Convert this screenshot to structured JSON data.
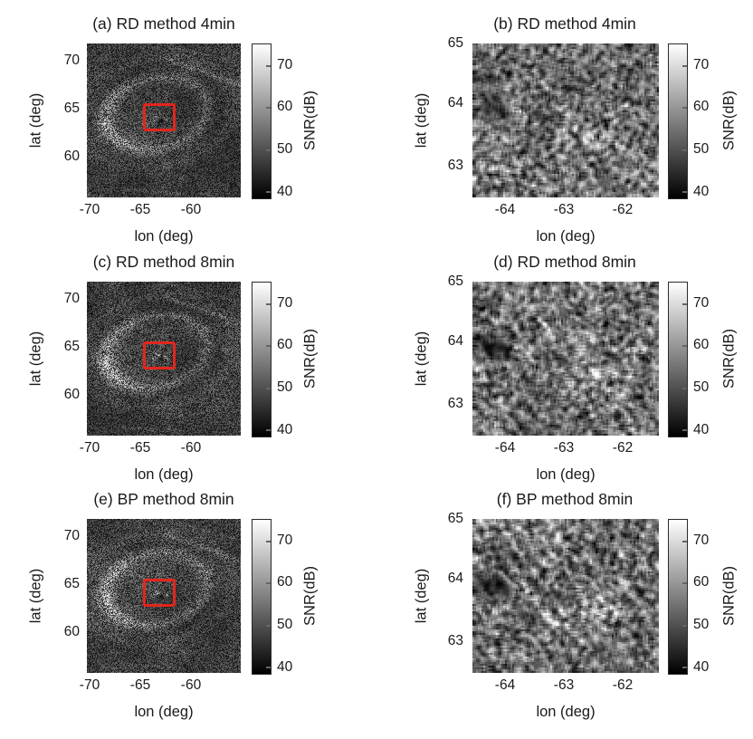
{
  "figure": {
    "type": "matlab-style multi-panel figure",
    "roi_color": "#e3261d",
    "text_color": "#1a1a1a",
    "background": "#ffffff"
  },
  "chart_data": {
    "type": "heatmap",
    "description": "Six grayscale SAR SNR maps: left column full scene with red ROI box, right column zoom of ROI",
    "panels": [
      {
        "id": "a",
        "title": "(a) RD method 4min",
        "method": "RD",
        "duration": "4min",
        "view": "context",
        "xlabel": "lon (deg)",
        "ylabel": "lat (deg)",
        "xlim": [
          -70.5,
          -55.5
        ],
        "ylim": [
          55.7,
          71.7
        ],
        "xticks": [
          -70,
          -65,
          -60
        ],
        "yticks": [
          70,
          65,
          60
        ],
        "colorbar": {
          "label": "SNR(dB)",
          "ticks": [
            70,
            60,
            50,
            40
          ],
          "vmin": 40,
          "vmax": 75
        },
        "roi": {
          "lon": [
            -64.6,
            -61.4
          ],
          "lat": [
            62.4,
            65.3
          ],
          "color": "#e3261d"
        },
        "render": {
          "kind": "context",
          "seed": 101,
          "base": 58,
          "mottle": 26,
          "crater": {
            "cx": 0.45,
            "cy": 0.45,
            "rx": 0.34,
            "ry": 0.235,
            "rot": -12,
            "ring": 30,
            "west": 46,
            "interior": 12,
            "outer": 12,
            "darkInner": 24
          },
          "streaks": [
            {
              "x1": 0.52,
              "y1": 0.1,
              "x2": 1.0,
              "y2": 0.27,
              "w": 2.6,
              "amp": 26
            },
            {
              "x1": 0.55,
              "y1": 0.015,
              "x2": 0.95,
              "y2": 0.12,
              "w": 2.0,
              "amp": 15
            },
            {
              "x1": 0.22,
              "y1": 0.94,
              "x2": 0.6,
              "y2": 0.97,
              "w": 2.0,
              "amp": 13
            }
          ],
          "dots": [
            {
              "u": 0.455,
              "v": 0.475,
              "sx": 0.013,
              "sy": 0.011,
              "amp": 60
            },
            {
              "u": 0.515,
              "v": 0.49,
              "sx": 0.012,
              "sy": 0.01,
              "amp": 55
            },
            {
              "u": 0.43,
              "v": 0.5,
              "sx": 0.01,
              "sy": 0.009,
              "amp": 45
            },
            {
              "u": 0.48,
              "v": 0.5,
              "sx": 0.012,
              "sy": 0.01,
              "amp": -45
            },
            {
              "u": 0.62,
              "v": 0.87,
              "sx": 0.02,
              "sy": 0.015,
              "amp": 22
            },
            {
              "u": 0.9,
              "v": 0.44,
              "sx": 0.015,
              "sy": 0.012,
              "amp": 20
            },
            {
              "u": 0.13,
              "v": 0.52,
              "sx": 0.02,
              "sy": 0.03,
              "amp": 18
            }
          ]
        }
      },
      {
        "id": "b",
        "title": "(b) RD method 4min",
        "method": "RD",
        "duration": "4min",
        "view": "zoom",
        "xlabel": "lon (deg)",
        "ylabel": "lat (deg)",
        "xlim": [
          -64.55,
          -61.4
        ],
        "ylim": [
          62.5,
          65.0
        ],
        "xticks": [
          -64,
          -63,
          -62
        ],
        "yticks": [
          65,
          64,
          63
        ],
        "colorbar": {
          "label": "SNR(dB)",
          "ticks": [
            70,
            60,
            50,
            40
          ],
          "vmin": 40,
          "vmax": 75
        },
        "render": {
          "kind": "zoom",
          "seed": 202,
          "base": 112,
          "mottle": 30,
          "stripes": {
            "angle": -35,
            "period": 15,
            "amp": 6
          },
          "blobs": [
            {
              "u": 0.12,
              "v": 0.43,
              "sx": 0.08,
              "sy": 0.05,
              "rot": -15,
              "amp": -70
            },
            {
              "u": 0.26,
              "v": 0.44,
              "sx": 0.05,
              "sy": 0.018,
              "rot": -38,
              "amp": 72
            },
            {
              "u": 0.37,
              "v": 0.26,
              "sx": 0.03,
              "sy": 0.012,
              "rot": -38,
              "amp": 45
            },
            {
              "u": 0.5,
              "v": 0.52,
              "sx": 0.16,
              "sy": 0.03,
              "rot": -22,
              "amp": -40
            },
            {
              "u": 0.66,
              "v": 0.6,
              "sx": 0.11,
              "sy": 0.05,
              "rot": -18,
              "amp": 60
            },
            {
              "u": 0.86,
              "v": 0.44,
              "sx": 0.05,
              "sy": 0.025,
              "rot": -20,
              "amp": 24
            },
            {
              "u": 0.3,
              "v": 0.62,
              "sx": 0.05,
              "sy": 0.03,
              "rot": -30,
              "amp": -28
            }
          ]
        }
      },
      {
        "id": "c",
        "title": "(c) RD method 8min",
        "method": "RD",
        "duration": "8min",
        "view": "context",
        "xlabel": "lon (deg)",
        "ylabel": "lat (deg)",
        "xlim": [
          -70.5,
          -55.5
        ],
        "ylim": [
          55.7,
          71.7
        ],
        "xticks": [
          -70,
          -65,
          -60
        ],
        "yticks": [
          70,
          65,
          60
        ],
        "colorbar": {
          "label": "SNR(dB)",
          "ticks": [
            70,
            60,
            50,
            40
          ],
          "vmin": 40,
          "vmax": 75
        },
        "roi": {
          "lon": [
            -64.6,
            -61.4
          ],
          "lat": [
            62.4,
            65.3
          ],
          "color": "#e3261d"
        },
        "render": {
          "kind": "context",
          "seed": 103,
          "base": 58,
          "mottle": 26,
          "crater": {
            "cx": 0.45,
            "cy": 0.45,
            "rx": 0.34,
            "ry": 0.235,
            "rot": -12,
            "ring": 32,
            "west": 48,
            "interior": 12,
            "outer": 12,
            "darkInner": 26
          },
          "streaks": [
            {
              "x1": 0.52,
              "y1": 0.1,
              "x2": 1.0,
              "y2": 0.27,
              "w": 2.6,
              "amp": 26
            },
            {
              "x1": 0.55,
              "y1": 0.015,
              "x2": 0.95,
              "y2": 0.12,
              "w": 2.0,
              "amp": 15
            },
            {
              "x1": 0.22,
              "y1": 0.94,
              "x2": 0.6,
              "y2": 0.97,
              "w": 2.0,
              "amp": 13
            }
          ],
          "dots": [
            {
              "u": 0.455,
              "v": 0.475,
              "sx": 0.013,
              "sy": 0.011,
              "amp": 60
            },
            {
              "u": 0.515,
              "v": 0.49,
              "sx": 0.012,
              "sy": 0.01,
              "amp": 55
            },
            {
              "u": 0.43,
              "v": 0.5,
              "sx": 0.01,
              "sy": 0.009,
              "amp": 45
            },
            {
              "u": 0.48,
              "v": 0.5,
              "sx": 0.012,
              "sy": 0.01,
              "amp": -45
            },
            {
              "u": 0.62,
              "v": 0.87,
              "sx": 0.02,
              "sy": 0.015,
              "amp": 22
            },
            {
              "u": 0.9,
              "v": 0.44,
              "sx": 0.015,
              "sy": 0.012,
              "amp": 20
            },
            {
              "u": 0.13,
              "v": 0.52,
              "sx": 0.02,
              "sy": 0.03,
              "amp": 18
            }
          ]
        }
      },
      {
        "id": "d",
        "title": "(d) RD method 8min",
        "method": "RD",
        "duration": "8min",
        "view": "zoom",
        "xlabel": "lon (deg)",
        "ylabel": "lat (deg)",
        "xlim": [
          -64.55,
          -61.4
        ],
        "ylim": [
          62.5,
          65.0
        ],
        "xticks": [
          -64,
          -63,
          -62
        ],
        "yticks": [
          65,
          64,
          63
        ],
        "colorbar": {
          "label": "SNR(dB)",
          "ticks": [
            70,
            60,
            50,
            40
          ],
          "vmin": 40,
          "vmax": 75
        },
        "render": {
          "kind": "zoom",
          "seed": 204,
          "base": 112,
          "mottle": 30,
          "stripes": {
            "angle": -35,
            "period": 15,
            "amp": 12
          },
          "blobs": [
            {
              "u": 0.12,
              "v": 0.43,
              "sx": 0.08,
              "sy": 0.05,
              "rot": -15,
              "amp": -76
            },
            {
              "u": 0.26,
              "v": 0.44,
              "sx": 0.055,
              "sy": 0.018,
              "rot": -38,
              "amp": 80
            },
            {
              "u": 0.37,
              "v": 0.26,
              "sx": 0.03,
              "sy": 0.012,
              "rot": -38,
              "amp": 50
            },
            {
              "u": 0.5,
              "v": 0.52,
              "sx": 0.16,
              "sy": 0.03,
              "rot": -22,
              "amp": -48
            },
            {
              "u": 0.66,
              "v": 0.6,
              "sx": 0.12,
              "sy": 0.05,
              "rot": -18,
              "amp": 68
            },
            {
              "u": 0.86,
              "v": 0.44,
              "sx": 0.05,
              "sy": 0.025,
              "rot": -20,
              "amp": 26
            },
            {
              "u": 0.3,
              "v": 0.62,
              "sx": 0.05,
              "sy": 0.03,
              "rot": -30,
              "amp": -34
            },
            {
              "u": 0.43,
              "v": 0.66,
              "sx": 0.1,
              "sy": 0.02,
              "rot": -30,
              "amp": 40
            }
          ]
        }
      },
      {
        "id": "e",
        "title": "(e) BP method 8min",
        "method": "BP",
        "duration": "8min",
        "view": "context",
        "xlabel": "lon (deg)",
        "ylabel": "lat (deg)",
        "xlim": [
          -70.5,
          -55.5
        ],
        "ylim": [
          55.7,
          71.7
        ],
        "xticks": [
          -70,
          -65,
          -60
        ],
        "yticks": [
          70,
          65,
          60
        ],
        "colorbar": {
          "label": "SNR(dB)",
          "ticks": [
            70,
            60,
            50,
            40
          ],
          "vmin": 40,
          "vmax": 75
        },
        "roi": {
          "lon": [
            -64.6,
            -61.4
          ],
          "lat": [
            62.4,
            65.3
          ],
          "color": "#e3261d"
        },
        "render": {
          "kind": "context",
          "seed": 105,
          "base": 58,
          "mottle": 26,
          "crater": {
            "cx": 0.45,
            "cy": 0.45,
            "rx": 0.34,
            "ry": 0.235,
            "rot": -12,
            "ring": 32,
            "west": 50,
            "interior": 12,
            "outer": 12,
            "darkInner": 30
          },
          "streaks": [
            {
              "x1": 0.52,
              "y1": 0.1,
              "x2": 1.0,
              "y2": 0.27,
              "w": 2.6,
              "amp": 26
            },
            {
              "x1": 0.55,
              "y1": 0.015,
              "x2": 0.95,
              "y2": 0.12,
              "w": 2.0,
              "amp": 15
            },
            {
              "x1": 0.22,
              "y1": 0.94,
              "x2": 0.6,
              "y2": 0.97,
              "w": 2.0,
              "amp": 13
            }
          ],
          "dots": [
            {
              "u": 0.455,
              "v": 0.475,
              "sx": 0.013,
              "sy": 0.011,
              "amp": 60
            },
            {
              "u": 0.515,
              "v": 0.49,
              "sx": 0.012,
              "sy": 0.01,
              "amp": 55
            },
            {
              "u": 0.43,
              "v": 0.5,
              "sx": 0.01,
              "sy": 0.009,
              "amp": 45
            },
            {
              "u": 0.48,
              "v": 0.5,
              "sx": 0.012,
              "sy": 0.01,
              "amp": -45
            },
            {
              "u": 0.62,
              "v": 0.87,
              "sx": 0.02,
              "sy": 0.015,
              "amp": 22
            },
            {
              "u": 0.9,
              "v": 0.44,
              "sx": 0.015,
              "sy": 0.012,
              "amp": 20
            },
            {
              "u": 0.13,
              "v": 0.52,
              "sx": 0.02,
              "sy": 0.03,
              "amp": 18
            }
          ]
        }
      },
      {
        "id": "f",
        "title": "(f) BP method 8min",
        "method": "BP",
        "duration": "8min",
        "view": "zoom",
        "xlabel": "lon (deg)",
        "ylabel": "lat (deg)",
        "xlim": [
          -64.55,
          -61.4
        ],
        "ylim": [
          62.5,
          65.0
        ],
        "xticks": [
          -64,
          -63,
          -62
        ],
        "yticks": [
          65,
          64,
          63
        ],
        "colorbar": {
          "label": "SNR(dB)",
          "ticks": [
            70,
            60,
            50,
            40
          ],
          "vmin": 40,
          "vmax": 75
        },
        "render": {
          "kind": "zoom",
          "seed": 206,
          "base": 112,
          "mottle": 30,
          "stripes": {
            "angle": -35,
            "period": 15,
            "amp": 16
          },
          "blobs": [
            {
              "u": 0.12,
              "v": 0.43,
              "sx": 0.08,
              "sy": 0.05,
              "rot": -15,
              "amp": -86
            },
            {
              "u": 0.26,
              "v": 0.44,
              "sx": 0.055,
              "sy": 0.018,
              "rot": -38,
              "amp": 90
            },
            {
              "u": 0.37,
              "v": 0.26,
              "sx": 0.03,
              "sy": 0.012,
              "rot": -38,
              "amp": 52
            },
            {
              "u": 0.5,
              "v": 0.52,
              "sx": 0.16,
              "sy": 0.03,
              "rot": -22,
              "amp": -58
            },
            {
              "u": 0.66,
              "v": 0.6,
              "sx": 0.12,
              "sy": 0.05,
              "rot": -18,
              "amp": 80
            },
            {
              "u": 0.86,
              "v": 0.44,
              "sx": 0.05,
              "sy": 0.025,
              "rot": -20,
              "amp": 28
            },
            {
              "u": 0.3,
              "v": 0.62,
              "sx": 0.05,
              "sy": 0.03,
              "rot": -30,
              "amp": -40
            },
            {
              "u": 0.43,
              "v": 0.66,
              "sx": 0.1,
              "sy": 0.02,
              "rot": -30,
              "amp": 52
            },
            {
              "u": 0.2,
              "v": 0.24,
              "sx": 0.1,
              "sy": 0.04,
              "rot": -25,
              "amp": -30
            }
          ]
        }
      }
    ]
  }
}
